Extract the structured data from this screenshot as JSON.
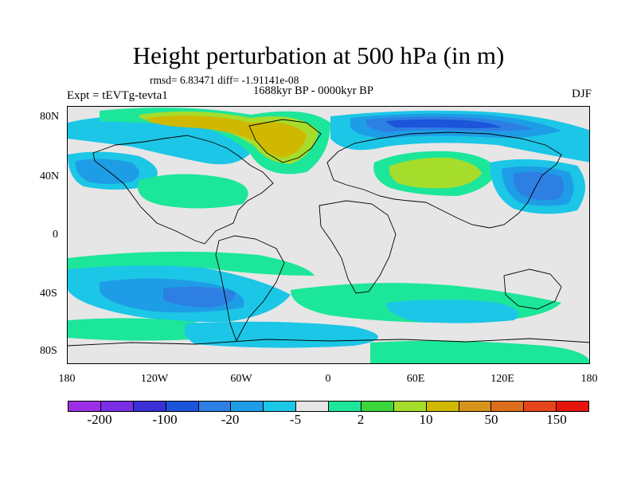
{
  "figure": {
    "title": "Height perturbation at 500 hPa (in m)",
    "stats": "rmsd= 6.83471  diff= -1.91141e-08",
    "period": "1688kyr BP - 0000kyr BP",
    "experiment": "Expt = tEVTg-tevta1",
    "season": "DJF"
  },
  "axes": {
    "lat_labels": [
      "80N",
      "40N",
      "0",
      "40S",
      "80S"
    ],
    "lon_labels": [
      "180",
      "120W",
      "60W",
      "0",
      "60E",
      "120E",
      "180"
    ]
  },
  "colorbar": {
    "colors": [
      "#9c2fe6",
      "#7a2ee6",
      "#3b2fd6",
      "#1c54da",
      "#2d7fe3",
      "#1e9de6",
      "#1cc6e6",
      "#e6e6e6",
      "#1ce69a",
      "#3cd63c",
      "#a6dc2c",
      "#d0b800",
      "#d7941c",
      "#dc6e1c",
      "#e6461c",
      "#e6160c"
    ],
    "labels": [
      "-200",
      "-100",
      "-20",
      "-5",
      "2",
      "10",
      "50",
      "150"
    ]
  },
  "map": {
    "colors": {
      "ocean_background": "#e6e6e6",
      "light_blue": "#1cc6e6",
      "mid_blue": "#1e9de6",
      "blue": "#2d7fe3",
      "dark_blue": "#1c54da",
      "light_green": "#1ce69a",
      "green": "#3cd63c",
      "yellow_green": "#a6dc2c",
      "olive_yellow": "#d0b800"
    }
  }
}
